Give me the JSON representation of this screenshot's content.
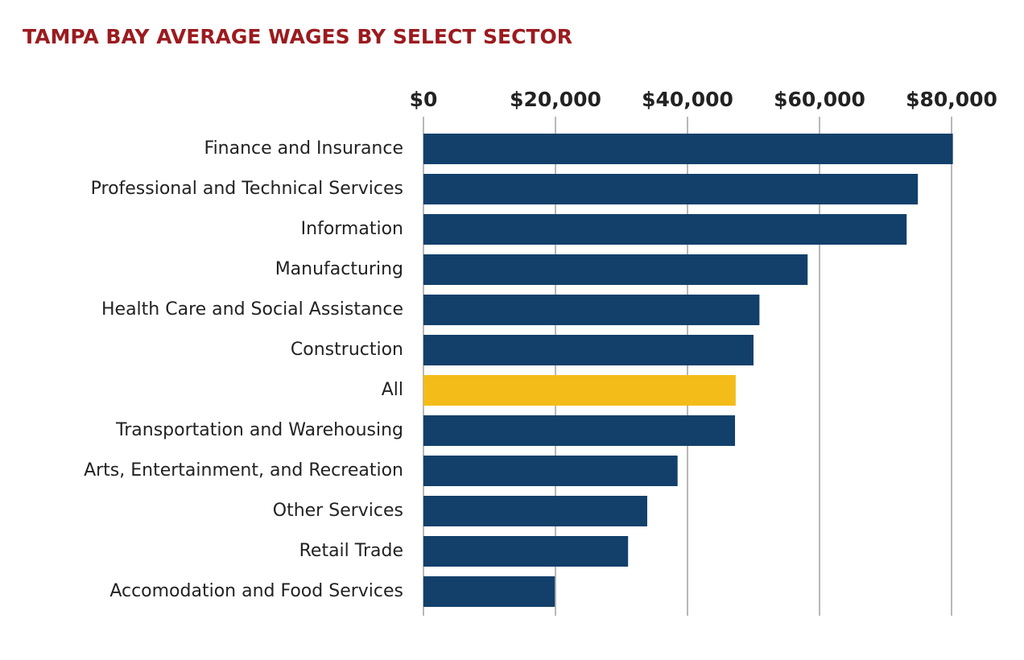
{
  "chart_data": {
    "type": "bar",
    "orientation": "horizontal",
    "title": "TAMPA BAY AVERAGE WAGES BY SELECT SECTOR",
    "categories": [
      "Finance and Insurance",
      "Professional and Technical Services",
      "Information",
      "Manufacturing",
      "Health Care and Social Assistance",
      "Construction",
      "All",
      "Transportation and Warehousing",
      "Arts, Entertainment, and Recreation",
      "Other Services",
      "Retail Trade",
      "Accomodation and Food Services"
    ],
    "values": [
      80200,
      74900,
      73200,
      58200,
      50900,
      50000,
      47300,
      47200,
      38500,
      33900,
      31000,
      19900
    ],
    "colors": [
      "#12406b",
      "#12406b",
      "#12406b",
      "#12406b",
      "#12406b",
      "#12406b",
      "#f3bc19",
      "#12406b",
      "#12406b",
      "#12406b",
      "#12406b",
      "#12406b"
    ],
    "xlim": [
      0,
      80000
    ],
    "xticks": [
      {
        "value": 0,
        "label": "$0"
      },
      {
        "value": 20000,
        "label": "$20,000"
      },
      {
        "value": 40000,
        "label": "$40,000"
      },
      {
        "value": 60000,
        "label": "$60,000"
      },
      {
        "value": 80000,
        "label": "$80,000"
      }
    ],
    "grid": true
  }
}
